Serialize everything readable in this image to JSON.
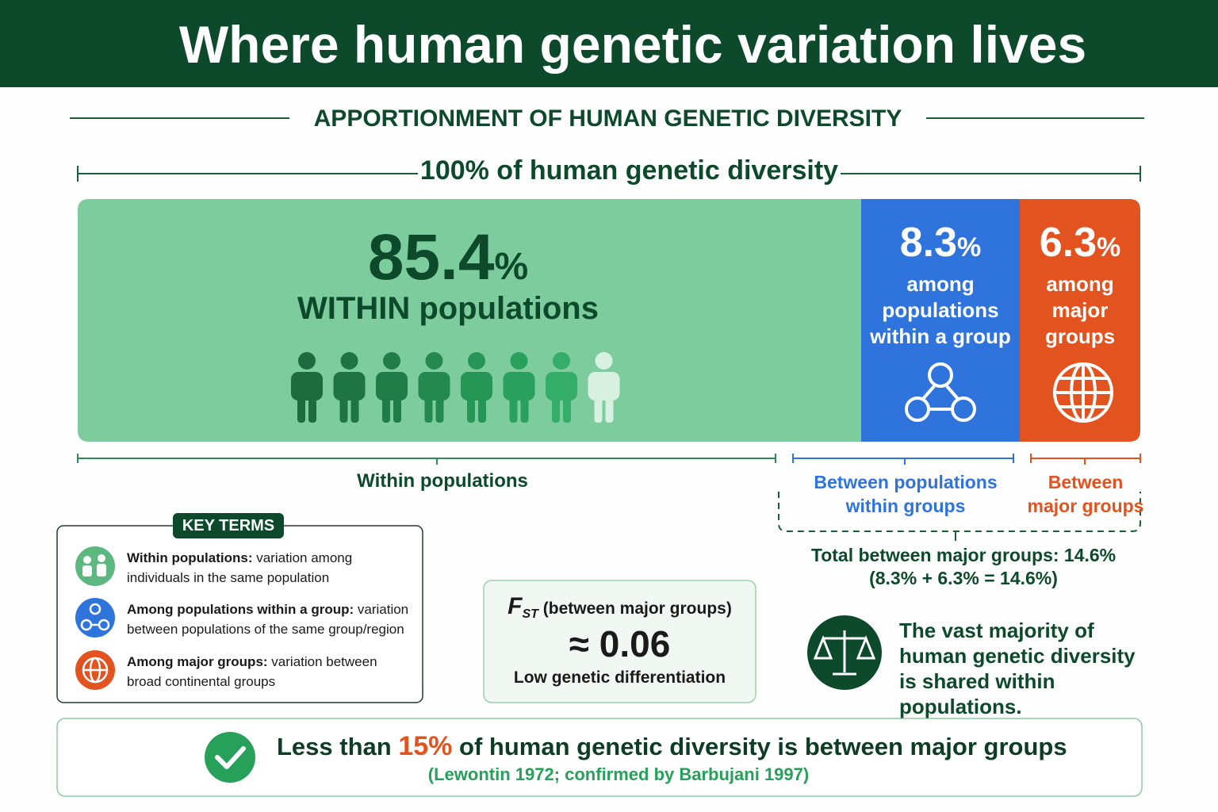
{
  "header": {
    "title": "Where human genetic variation lives"
  },
  "subtitle": "APPORTIONMENT OF HUMAN GENETIC DIVERSITY",
  "total_label": "100% of human genetic diversity",
  "segments": [
    {
      "value": 85.4,
      "unit": "%",
      "label": "WITHIN populations",
      "bracket_label": "Within populations"
    },
    {
      "value": 8.3,
      "unit": "%",
      "label": "among populations within a group",
      "bracket_label": "Between populations within groups"
    },
    {
      "value": 6.3,
      "unit": "%",
      "label": "among major groups",
      "bracket_label": "Between major groups"
    }
  ],
  "between_total": "Total between major groups: 14.6%",
  "between_sum": "(8.3% + 6.3% = 14.6%)",
  "key_terms": {
    "title": "KEY TERMS",
    "items": [
      {
        "term": "Within populations:",
        "text": "variation among individuals in the same population"
      },
      {
        "term": "Among populations within a group:",
        "text": "variation between populations of the same group/region"
      },
      {
        "term": "Among major groups:",
        "text": "variation between broad continental groups"
      }
    ]
  },
  "fst": {
    "symbol": "F",
    "subscript": "ST",
    "label": "(between major groups)",
    "value": "≈ 0.06",
    "caption": "Low genetic differentiation"
  },
  "note": "The vast majority of human genetic diversity is shared within populations.",
  "conclusion": {
    "before": "Less than",
    "highlight": "15%",
    "after": "of human genetic diversity is between major groups",
    "citation": "(Lewontin 1972; confirmed by Barbujani 1997)"
  }
}
